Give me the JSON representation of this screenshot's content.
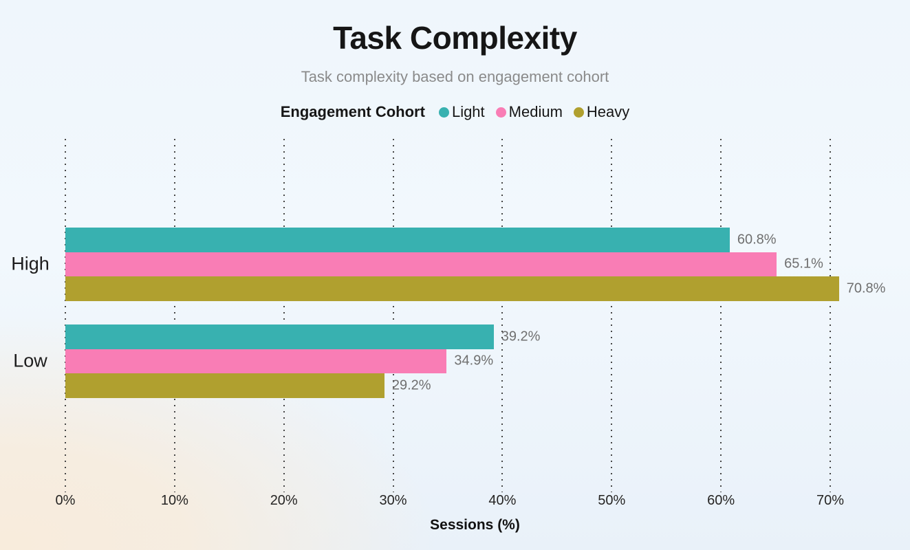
{
  "page": {
    "title": "Task Complexity",
    "subtitle": "Task complexity based on engagement cohort"
  },
  "legend": {
    "title": "Engagement Cohort",
    "items": [
      {
        "label": "Light",
        "color": "#38B1B0"
      },
      {
        "label": "Medium",
        "color": "#F97DB5"
      },
      {
        "label": "Heavy",
        "color": "#B0A02F"
      }
    ]
  },
  "chart_data": {
    "type": "bar",
    "orientation": "horizontal",
    "title": "Task Complexity",
    "subtitle": "Task complexity based on engagement cohort",
    "categories": [
      "High",
      "Low"
    ],
    "series": [
      {
        "name": "Light",
        "color": "#38B1B0",
        "values": [
          60.8,
          39.2
        ]
      },
      {
        "name": "Medium",
        "color": "#F97DB5",
        "values": [
          65.1,
          34.9
        ]
      },
      {
        "name": "Heavy",
        "color": "#B0A02F",
        "values": [
          70.8,
          29.2
        ]
      }
    ],
    "data_labels": [
      [
        "60.8%",
        "65.1%",
        "70.8%"
      ],
      [
        "39.2%",
        "34.9%",
        "29.2%"
      ]
    ],
    "xlabel": "Sessions (%)",
    "x_ticks": [
      "0%",
      "10%",
      "20%",
      "30%",
      "40%",
      "50%",
      "60%",
      "70%"
    ],
    "x_tick_values": [
      0,
      10,
      20,
      30,
      40,
      50,
      60,
      70
    ],
    "xlim": [
      0,
      70
    ],
    "grid": "dotted-vertical",
    "legend_title": "Engagement Cohort",
    "legend_position": "top-center"
  },
  "colors": {
    "value_label": "#6F6F6F",
    "tick_label": "#252423",
    "gridline": "#454545",
    "title_text": "#161616",
    "subtitle_text": "#8A8A8A"
  }
}
